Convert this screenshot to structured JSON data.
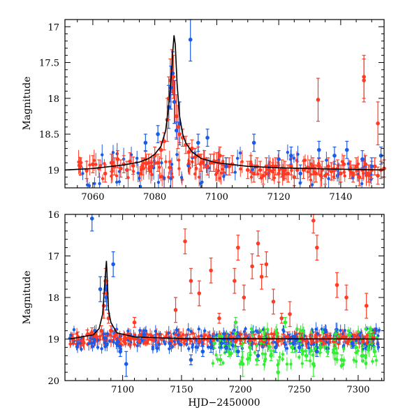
{
  "chart_data": [
    {
      "type": "scatter",
      "panel": "top",
      "title": "",
      "xlabel": "",
      "ylabel": "Magnitude",
      "xlim": [
        7051,
        7154
      ],
      "ylim": [
        19.25,
        16.9
      ],
      "y_inverted": true,
      "x_ticks": [
        7060,
        7080,
        7100,
        7120,
        7140
      ],
      "x_tick_labels": [
        "7060",
        "7080",
        "7100",
        "7120",
        "7140"
      ],
      "y_ticks": [
        17,
        17.5,
        18,
        18.5,
        19
      ],
      "y_tick_labels": [
        "17",
        "17.5",
        "18",
        "18.5",
        "19"
      ],
      "model_curve": {
        "name": "model",
        "color": "#000000",
        "x": [
          7051,
          7060,
          7070,
          7075,
          7078,
          7080,
          7082,
          7083.5,
          7084.5,
          7085.3,
          7085.8,
          7086.2,
          7086.6,
          7087.2,
          7088,
          7089,
          7090,
          7092,
          7095,
          7100,
          7110,
          7120,
          7130,
          7140,
          7154
        ],
        "y": [
          19.0,
          18.98,
          18.93,
          18.89,
          18.84,
          18.78,
          18.67,
          18.45,
          18.1,
          17.7,
          17.35,
          17.12,
          17.25,
          17.8,
          18.25,
          18.5,
          18.62,
          18.75,
          18.84,
          18.9,
          18.95,
          18.97,
          18.98,
          18.99,
          19.0
        ]
      },
      "series": [
        {
          "name": "red",
          "color": "#ff3b25",
          "x": [
            7056,
            7058,
            7060,
            7062,
            7064,
            7066,
            7067,
            7068,
            7069,
            7070,
            7071,
            7072,
            7073,
            7076,
            7077,
            7078,
            7079,
            7080,
            7081,
            7082,
            7083,
            7084,
            7084.5,
            7085,
            7085.5,
            7086,
            7086.5,
            7087,
            7087.5,
            7088,
            7089,
            7090,
            7091,
            7092,
            7093,
            7094,
            7095,
            7096,
            7097,
            7098,
            7099,
            7100,
            7101,
            7102,
            7103,
            7104,
            7105,
            7110,
            7111,
            7112,
            7113,
            7114,
            7115,
            7116,
            7117,
            7118,
            7119,
            7120,
            7121,
            7122,
            7123,
            7124,
            7125,
            7126,
            7128,
            7130,
            7131,
            7132,
            7133,
            7134,
            7135,
            7136,
            7137,
            7138,
            7139,
            7140,
            7141,
            7143,
            7144,
            7145,
            7146,
            7147,
            7148,
            7149,
            7150,
            7151,
            7152,
            7153,
            7154,
            7132.7,
            7147.5,
            7147.5,
            7152
          ],
          "y": [
            18.95,
            19.0,
            18.92,
            18.98,
            19.05,
            18.9,
            18.95,
            18.85,
            18.98,
            18.92,
            19.0,
            18.88,
            18.94,
            18.95,
            18.85,
            18.9,
            18.95,
            18.8,
            18.9,
            18.72,
            18.6,
            18.3,
            18.0,
            17.75,
            17.62,
            17.7,
            18.05,
            18.25,
            18.4,
            18.5,
            18.55,
            18.65,
            18.75,
            18.7,
            18.82,
            18.8,
            18.9,
            18.85,
            18.95,
            18.9,
            18.9,
            18.88,
            18.8,
            18.92,
            18.95,
            18.95,
            18.92,
            19.0,
            18.92,
            19.05,
            18.95,
            19.0,
            19.08,
            18.95,
            19.0,
            19.02,
            18.95,
            19.05,
            18.98,
            19.0,
            19.05,
            18.95,
            19.1,
            19.0,
            19.0,
            18.98,
            18.95,
            19.05,
            18.95,
            19.0,
            19.08,
            18.95,
            19.02,
            19.0,
            18.98,
            19.05,
            18.92,
            19.0,
            19.05,
            18.95,
            19.1,
            19.0,
            18.92,
            19.05,
            19.0,
            18.95,
            19.08,
            19.0,
            18.98,
            18.02,
            17.7,
            17.75,
            18.35
          ]
        },
        {
          "name": "blue",
          "color": "#1b5be6",
          "x": [
            7077,
            7081,
            7084.5,
            7085.2,
            7085.8,
            7086.3,
            7087,
            7088,
            7091.5,
            7094,
            7097,
            7103,
            7112,
            7120,
            7124,
            7127,
            7133,
            7138,
            7142,
            7147,
            7150,
            7153
          ],
          "y": [
            18.62,
            18.5,
            18.12,
            17.85,
            17.65,
            18.05,
            18.45,
            18.35,
            17.18,
            18.62,
            18.55,
            18.95,
            18.62,
            18.85,
            18.8,
            19.05,
            18.72,
            18.8,
            18.72,
            18.85,
            18.95,
            18.8
          ]
        }
      ]
    },
    {
      "type": "scatter",
      "panel": "bottom",
      "title": "",
      "xlabel": "HJD−2450000",
      "ylabel": "Magnitude",
      "xlim": [
        7051,
        7322
      ],
      "ylim": [
        20,
        16
      ],
      "y_inverted": true,
      "x_ticks": [
        7100,
        7150,
        7200,
        7250,
        7300
      ],
      "x_tick_labels": [
        "7100",
        "7150",
        "7200",
        "7250",
        "7300"
      ],
      "y_ticks": [
        16,
        17,
        18,
        19,
        20
      ],
      "y_tick_labels": [
        "16",
        "17",
        "18",
        "19",
        "20"
      ],
      "model_curve": {
        "name": "model",
        "color": "#000000",
        "x": [
          7055,
          7075,
          7080,
          7083,
          7085,
          7086.2,
          7087,
          7088,
          7090,
          7095,
          7110,
          7150,
          7320
        ],
        "y": [
          19.0,
          18.9,
          18.75,
          18.4,
          17.6,
          17.12,
          17.6,
          18.3,
          18.6,
          18.85,
          18.95,
          18.99,
          19.0
        ]
      },
      "series": [
        {
          "name": "red",
          "color": "#ff3b25",
          "x": [
            7058,
            7062,
            7066,
            7070,
            7074,
            7078,
            7082,
            7084,
            7085.5,
            7086.5,
            7088,
            7090,
            7094,
            7098,
            7102,
            7106,
            7110,
            7114,
            7118,
            7122,
            7126,
            7133,
            7137,
            7141,
            7145,
            7149,
            7153,
            7157,
            7161,
            7165,
            7169,
            7173,
            7177,
            7188,
            7192,
            7196,
            7200,
            7204,
            7208,
            7212,
            7216,
            7220,
            7224,
            7228,
            7232,
            7236,
            7240,
            7248,
            7252,
            7256,
            7260,
            7264,
            7268,
            7272,
            7276,
            7280,
            7284,
            7288,
            7292,
            7296,
            7300,
            7304,
            7308,
            7312,
            7110,
            7153,
            7158,
            7175,
            7182,
            7195,
            7198,
            7203,
            7210,
            7215,
            7218,
            7222,
            7228,
            7235,
            7262,
            7265,
            7282,
            7290,
            7307,
            7145,
            7165,
            7242
          ],
          "y": [
            19.0,
            18.95,
            19.05,
            18.9,
            18.85,
            18.95,
            18.8,
            18.2,
            17.6,
            17.9,
            18.5,
            18.8,
            18.9,
            19.0,
            19.02,
            18.98,
            19.0,
            19.05,
            18.95,
            19.0,
            19.02,
            19.0,
            18.95,
            19.05,
            19.0,
            18.95,
            19.02,
            19.0,
            18.98,
            19.05,
            19.0,
            18.95,
            19.02,
            19.0,
            18.95,
            19.05,
            19.0,
            18.98,
            19.02,
            19.0,
            18.95,
            19.05,
            19.0,
            18.98,
            19.05,
            19.0,
            18.95,
            19.0,
            18.98,
            19.05,
            19.0,
            18.95,
            19.02,
            19.0,
            18.98,
            19.05,
            19.0,
            18.95,
            19.02,
            19.0,
            18.98,
            19.05,
            19.0,
            18.98,
            18.6,
            16.65,
            17.6,
            17.35,
            18.5,
            17.6,
            16.8,
            18.0,
            17.25,
            16.7,
            17.5,
            17.2,
            18.1,
            18.5,
            16.15,
            16.8,
            17.7,
            18.0,
            18.2,
            18.3,
            17.9,
            18.4
          ]
        },
        {
          "name": "blue",
          "color": "#1b5be6",
          "x": [
            7074,
            7081,
            7085.5,
            7086.3,
            7092,
            7098,
            7103,
            7118,
            7140,
            7158,
            7168,
            7175,
            7184,
            7186,
            7188,
            7190,
            7198,
            7215,
            7230,
            7242,
            7245,
            7248,
            7250,
            7265,
            7280,
            7295,
            7310
          ],
          "y": [
            16.1,
            17.8,
            17.8,
            18.0,
            17.2,
            19.3,
            19.6,
            18.9,
            19.1,
            19.5,
            19.3,
            19.2,
            19.1,
            19.0,
            19.2,
            19.0,
            19.3,
            19.4,
            19.2,
            19.0,
            19.1,
            19.0,
            19.2,
            19.3,
            19.0,
            19.1,
            19.0
          ]
        },
        {
          "name": "green",
          "color": "#33ee33",
          "x": [
            7178,
            7183,
            7190,
            7196,
            7202,
            7208,
            7214,
            7220,
            7226,
            7232,
            7238,
            7244,
            7256,
            7262,
            7268,
            7274,
            7280,
            7286,
            7292,
            7298,
            7304,
            7310,
            7314
          ],
          "y": [
            19.1,
            19.5,
            19.3,
            18.6,
            19.6,
            19.2,
            19.5,
            19.0,
            19.4,
            19.8,
            18.6,
            19.2,
            19.4,
            19.6,
            19.2,
            19.3,
            19.0,
            19.5,
            18.9,
            19.2,
            19.4,
            19.0,
            19.3
          ]
        }
      ]
    }
  ]
}
